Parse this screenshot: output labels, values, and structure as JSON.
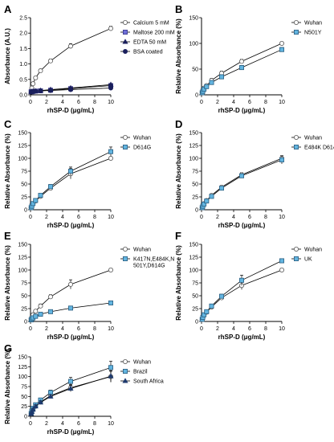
{
  "chart_data": [
    {
      "panel": "A",
      "type": "line",
      "xlabel": "rhSP-D (μg/mL)",
      "ylabel": "Absorbance (A.U.)",
      "xlim": [
        0,
        10
      ],
      "ylim": [
        0,
        2.5
      ],
      "xticks": [
        "0",
        "2",
        "4",
        "6",
        "8",
        "10"
      ],
      "yticks": [
        "0.0",
        "0.5",
        "1.0",
        "1.5",
        "2.0",
        "2.5"
      ],
      "legend": "right",
      "x": [
        0.08,
        0.16,
        0.31,
        0.63,
        1.25,
        2.5,
        5,
        10
      ],
      "series": [
        {
          "name": "Calcium 5 mM",
          "marker": "circle-open",
          "values": [
            0.14,
            0.22,
            0.36,
            0.55,
            0.78,
            1.1,
            1.58,
            2.15
          ],
          "err": [
            0.03,
            0.03,
            0.04,
            0.04,
            0.05,
            0.06,
            0.08,
            0.07
          ]
        },
        {
          "name": "Maltose 200 mM",
          "marker": "square",
          "values": [
            0.1,
            0.1,
            0.11,
            0.12,
            0.13,
            0.15,
            0.2,
            0.3
          ],
          "err": [
            0.01,
            0.01,
            0.01,
            0.01,
            0.01,
            0.02,
            0.02,
            0.03
          ]
        },
        {
          "name": "EDTA 50 mM",
          "marker": "triangle",
          "values": [
            0.1,
            0.1,
            0.11,
            0.12,
            0.14,
            0.17,
            0.22,
            0.33
          ],
          "err": [
            0.01,
            0.01,
            0.01,
            0.01,
            0.01,
            0.02,
            0.02,
            0.03
          ]
        },
        {
          "name": "BSA coated",
          "marker": "circle-filled",
          "values": [
            0.09,
            0.1,
            0.11,
            0.12,
            0.13,
            0.14,
            0.17,
            0.22
          ],
          "err": [
            0.01,
            0.01,
            0.01,
            0.01,
            0.01,
            0.01,
            0.02,
            0.02
          ]
        }
      ]
    },
    {
      "panel": "B",
      "type": "line",
      "xlabel": "rhSP-D (μg/mL)",
      "ylabel": "Relative Absorbance (%)",
      "xlim": [
        0,
        10
      ],
      "ylim": [
        0,
        150
      ],
      "xticks": [
        "0",
        "2",
        "4",
        "6",
        "8",
        "10"
      ],
      "yticks": [
        "0",
        "50",
        "100",
        "150"
      ],
      "legend": "right",
      "x": [
        0.08,
        0.16,
        0.31,
        0.63,
        1.25,
        2.5,
        5,
        10
      ],
      "series": [
        {
          "name": "Wuhan",
          "marker": "circle-open",
          "values": [
            5,
            9,
            13,
            18,
            28,
            42,
            65,
            100
          ],
          "err": [
            2,
            2,
            3,
            3,
            4,
            4,
            4,
            3
          ]
        },
        {
          "name": "N501Y",
          "marker": "square-blue",
          "values": [
            4,
            7,
            11,
            16,
            24,
            35,
            53,
            88
          ],
          "err": [
            2,
            2,
            3,
            3,
            3,
            4,
            4,
            4
          ]
        }
      ]
    },
    {
      "panel": "C",
      "type": "line",
      "xlabel": "rhSP-D (μg/mL)",
      "ylabel": "Relative Absorbance (%)",
      "xlim": [
        0,
        10
      ],
      "ylim": [
        0,
        150
      ],
      "xticks": [
        "0",
        "2",
        "4",
        "6",
        "8",
        "10"
      ],
      "yticks": [
        "0",
        "25",
        "50",
        "75",
        "100",
        "125",
        "150"
      ],
      "legend": "right",
      "x": [
        0.08,
        0.16,
        0.31,
        0.63,
        1.25,
        2.5,
        5,
        10
      ],
      "series": [
        {
          "name": "Wuhan",
          "marker": "circle-open",
          "values": [
            4,
            7,
            11,
            17,
            26,
            42,
            70,
            100
          ],
          "err": [
            1,
            2,
            2,
            3,
            3,
            4,
            10,
            3
          ]
        },
        {
          "name": "D614G",
          "marker": "square-blue",
          "values": [
            4,
            7,
            12,
            18,
            28,
            45,
            75,
            113
          ],
          "err": [
            1,
            2,
            2,
            3,
            3,
            4,
            8,
            9
          ]
        }
      ]
    },
    {
      "panel": "D",
      "type": "line",
      "xlabel": "rhSP-D (μg/mL)",
      "ylabel": "Relative Absorbance (%)",
      "xlim": [
        0,
        10
      ],
      "ylim": [
        0,
        150
      ],
      "xticks": [
        "0",
        "2",
        "4",
        "6",
        "8",
        "10"
      ],
      "yticks": [
        "0",
        "25",
        "50",
        "75",
        "100",
        "125",
        "150"
      ],
      "legend": "right",
      "x": [
        0.08,
        0.16,
        0.31,
        0.63,
        1.25,
        2.5,
        5,
        10
      ],
      "series": [
        {
          "name": "Wuhan",
          "marker": "circle-open",
          "values": [
            4,
            8,
            12,
            18,
            28,
            44,
            68,
            100
          ],
          "err": [
            1,
            2,
            2,
            3,
            3,
            3,
            4,
            5
          ]
        },
        {
          "name": "E484K D614G",
          "marker": "square-blue",
          "values": [
            4,
            7,
            11,
            17,
            26,
            42,
            66,
            97
          ],
          "err": [
            1,
            2,
            2,
            3,
            3,
            3,
            4,
            8
          ]
        }
      ]
    },
    {
      "panel": "E",
      "type": "line",
      "xlabel": "rhSP-D (μg/mL)",
      "ylabel": "Relative Absorbance (%)",
      "xlim": [
        0,
        10
      ],
      "ylim": [
        0,
        150
      ],
      "xticks": [
        "0",
        "2",
        "4",
        "6",
        "8",
        "10"
      ],
      "yticks": [
        "0",
        "25",
        "50",
        "75",
        "100",
        "125",
        "150"
      ],
      "legend": "right",
      "x": [
        0.08,
        0.16,
        0.31,
        0.63,
        1.25,
        2.5,
        5,
        10
      ],
      "series": [
        {
          "name": "Wuhan",
          "marker": "circle-open",
          "values": [
            5,
            9,
            13,
            20,
            30,
            48,
            72,
            100
          ],
          "err": [
            2,
            2,
            3,
            3,
            4,
            4,
            9,
            3
          ]
        },
        {
          "name": "K417N,E484K,N 501Y,D614G",
          "marker": "square-blue",
          "values": [
            3,
            5,
            7,
            10,
            14,
            19,
            26,
            36
          ],
          "err": [
            1,
            1,
            1,
            2,
            2,
            2,
            3,
            3
          ]
        }
      ]
    },
    {
      "panel": "F",
      "type": "line",
      "xlabel": "rhSP-D (μg/mL)",
      "ylabel": "Relative Absorbance (%)",
      "xlim": [
        0,
        10
      ],
      "ylim": [
        0,
        150
      ],
      "xticks": [
        "0",
        "2",
        "4",
        "6",
        "8",
        "10"
      ],
      "yticks": [
        "0",
        "25",
        "50",
        "75",
        "100",
        "125",
        "150"
      ],
      "legend": "right",
      "x": [
        0.08,
        0.16,
        0.31,
        0.63,
        1.25,
        2.5,
        5,
        10
      ],
      "series": [
        {
          "name": "Wuhan",
          "marker": "circle-open",
          "values": [
            4,
            8,
            12,
            18,
            28,
            46,
            70,
            100
          ],
          "err": [
            1,
            2,
            2,
            3,
            3,
            4,
            8,
            3
          ]
        },
        {
          "name": "UK",
          "marker": "square-blue",
          "values": [
            4,
            8,
            13,
            19,
            30,
            49,
            80,
            118
          ],
          "err": [
            1,
            2,
            2,
            3,
            3,
            4,
            10,
            4
          ]
        }
      ]
    },
    {
      "panel": "G",
      "type": "line",
      "xlabel": "rhSP-D (μg/mL)",
      "ylabel": "Relative Absorbance (%)",
      "xlim": [
        0,
        10
      ],
      "ylim": [
        0,
        150
      ],
      "xticks": [
        "0",
        "2",
        "4",
        "6",
        "8",
        "10"
      ],
      "yticks": [
        "0",
        "25",
        "50",
        "75",
        "100",
        "125",
        "150"
      ],
      "legend": "right",
      "x": [
        0.08,
        0.16,
        0.31,
        0.63,
        1.25,
        2.5,
        5,
        10
      ],
      "series": [
        {
          "name": "Wuhan",
          "marker": "circle-open",
          "values": [
            6,
            11,
            17,
            25,
            36,
            52,
            72,
            100
          ],
          "err": [
            2,
            3,
            3,
            4,
            4,
            5,
            8,
            14
          ]
        },
        {
          "name": "Brazil",
          "marker": "square-blue",
          "values": [
            7,
            13,
            20,
            29,
            41,
            60,
            88,
            123
          ],
          "err": [
            2,
            3,
            3,
            4,
            5,
            6,
            10,
            16
          ]
        },
        {
          "name": "South Africa",
          "marker": "triangle-navy",
          "values": [
            6,
            11,
            17,
            25,
            35,
            50,
            70,
            101
          ],
          "err": [
            2,
            3,
            3,
            4,
            4,
            5,
            8,
            14
          ]
        }
      ]
    }
  ]
}
